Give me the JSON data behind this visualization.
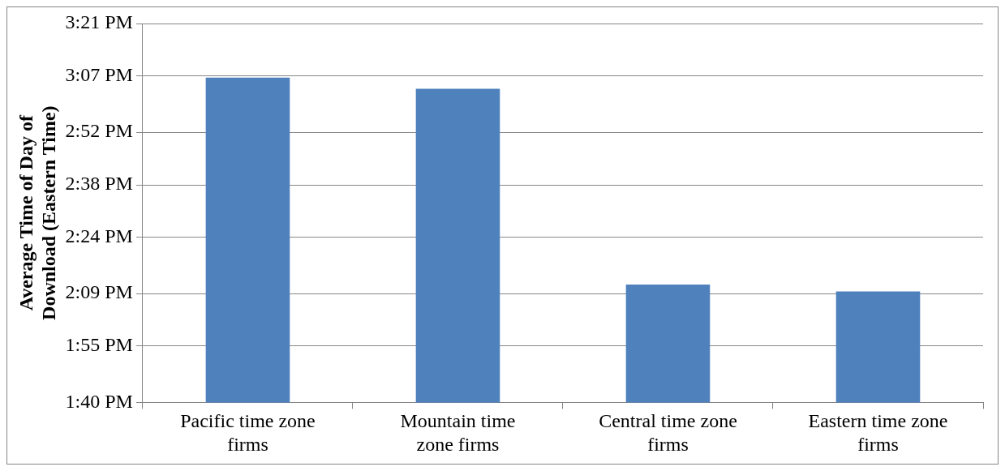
{
  "chart_data": {
    "type": "bar",
    "ylabel": "Average Time of Day of Download (Eastern Time)",
    "categories": [
      "Pacific time zone firms",
      "Mountain time zone firms",
      "Central time zone firms",
      "Eastern time zone firms"
    ],
    "values": [
      15.11,
      15.06,
      14.19,
      14.16
    ],
    "color": "#4f81bd",
    "ylim": [
      13.6667,
      15.35
    ],
    "yticks": [
      {
        "value": 13.6667,
        "label": "1:40 PM"
      },
      {
        "value": 13.9167,
        "label": "1:55 PM"
      },
      {
        "value": 14.15,
        "label": "2:09 PM"
      },
      {
        "value": 14.4,
        "label": "2:24 PM"
      },
      {
        "value": 14.6333,
        "label": "2:38 PM"
      },
      {
        "value": 14.8667,
        "label": "2:52 PM"
      },
      {
        "value": 15.1167,
        "label": "3:07 PM"
      },
      {
        "value": 15.35,
        "label": "3:21 PM"
      }
    ],
    "grid": "y",
    "legend": false
  }
}
